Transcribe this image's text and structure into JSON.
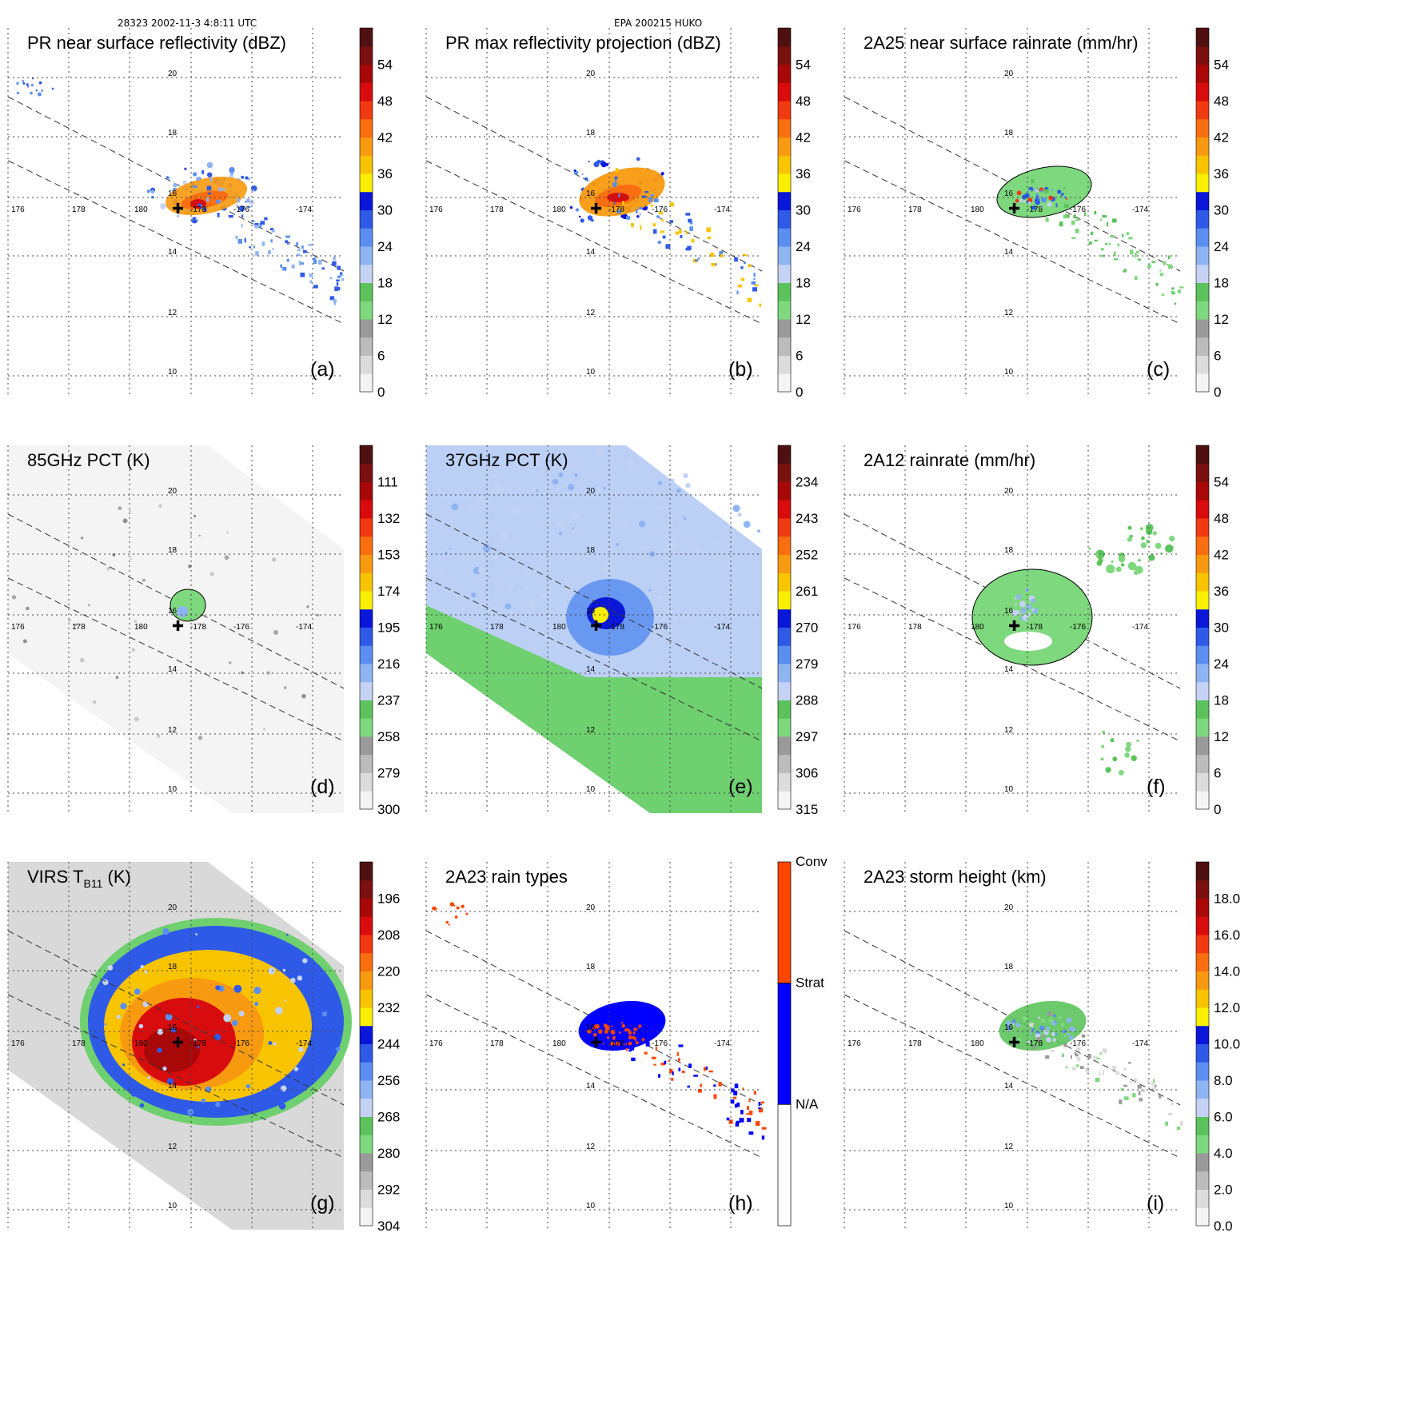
{
  "header": {
    "left": "28323 2002-11-3 4:8:11 UTC",
    "center": "EPA 200215 HUKO"
  },
  "swath_labels": {
    "lat": [
      "20",
      "18",
      "16",
      "14",
      "12",
      "10"
    ],
    "lon": [
      "176",
      "178",
      "180",
      "-178",
      "-176",
      "-174"
    ]
  },
  "colors": {
    "ramp": [
      "#f4f4f4",
      "#dcdcdc",
      "#bcbcbc",
      "#9a9a9a",
      "#7ed87e",
      "#5cc35c",
      "#c4d2f4",
      "#8fb4f2",
      "#5a8ef0",
      "#2f5ae8",
      "#0a16d8",
      "#f8f000",
      "#f8c400",
      "#f89a10",
      "#f86e10",
      "#f03a10",
      "#d80c0c",
      "#a80808",
      "#7a1010",
      "#4e1010"
    ],
    "rain_type": [
      "#ffffff",
      "#0000ff",
      "#ff4500"
    ],
    "land_green": "#6fd06f",
    "storm_red": "#d02010",
    "storm_orange": "#f59020",
    "storm_yellow": "#f8e000",
    "storm_blue": "#2040e0",
    "light_blue": "#a8c4f4"
  },
  "chart_data": [
    {
      "id": "a",
      "type": "heatmap",
      "title": "PR near surface reflectivity (dBZ)",
      "letter": "(a)",
      "units": "dBZ",
      "cbar_ticks": [
        "0",
        "6",
        "12",
        "18",
        "24",
        "30",
        "36",
        "42",
        "48",
        "54"
      ],
      "range": [
        0,
        60
      ]
    },
    {
      "id": "b",
      "type": "heatmap",
      "title": "PR max reflectivity projection (dBZ)",
      "letter": "(b)",
      "units": "dBZ",
      "cbar_ticks": [
        "0",
        "6",
        "12",
        "18",
        "24",
        "30",
        "36",
        "42",
        "48",
        "54"
      ],
      "range": [
        0,
        60
      ]
    },
    {
      "id": "c",
      "type": "heatmap",
      "title": "2A25 near surface rainrate (mm/hr)",
      "letter": "(c)",
      "units": "mm/hr",
      "cbar_ticks": [
        "0",
        "6",
        "12",
        "18",
        "24",
        "30",
        "36",
        "42",
        "48",
        "54"
      ],
      "range": [
        0,
        60
      ]
    },
    {
      "id": "d",
      "type": "heatmap",
      "title": "85GHz PCT (K)",
      "letter": "(d)",
      "units": "K",
      "cbar_ticks": [
        "300",
        "279",
        "258",
        "237",
        "216",
        "195",
        "174",
        "153",
        "132",
        "111"
      ],
      "range": [
        300,
        90
      ]
    },
    {
      "id": "e",
      "type": "heatmap",
      "title": "37GHz PCT (K)",
      "letter": "(e)",
      "units": "K",
      "cbar_ticks": [
        "315",
        "306",
        "297",
        "288",
        "279",
        "270",
        "261",
        "252",
        "243",
        "234"
      ],
      "range": [
        315,
        225
      ]
    },
    {
      "id": "f",
      "type": "heatmap",
      "title": "2A12 rainrate (mm/hr)",
      "letter": "(f)",
      "units": "mm/hr",
      "cbar_ticks": [
        "0",
        "6",
        "12",
        "18",
        "24",
        "30",
        "36",
        "42",
        "48",
        "54"
      ],
      "range": [
        0,
        60
      ]
    },
    {
      "id": "g",
      "type": "heatmap",
      "title": "VIRS T",
      "title_sub": "B11",
      "title_tail": " (K)",
      "letter": "(g)",
      "units": "K",
      "cbar_ticks": [
        "304",
        "292",
        "280",
        "268",
        "256",
        "244",
        "232",
        "220",
        "208",
        "196"
      ],
      "range": [
        304,
        184
      ]
    },
    {
      "id": "h",
      "type": "heatmap",
      "title": "2A23 rain types",
      "letter": "(h)",
      "units": "category",
      "cbar_ticks": [
        "N/A",
        "Strat",
        "Conv"
      ],
      "categories": [
        "N/A",
        "Strat",
        "Conv"
      ]
    },
    {
      "id": "i",
      "type": "heatmap",
      "title": "2A23 storm height (km)",
      "letter": "(i)",
      "units": "km",
      "cbar_ticks": [
        "0.0",
        "2.0",
        "4.0",
        "6.0",
        "8.0",
        "10.0",
        "12.0",
        "14.0",
        "16.0",
        "18.0"
      ],
      "range": [
        0,
        20
      ]
    }
  ]
}
